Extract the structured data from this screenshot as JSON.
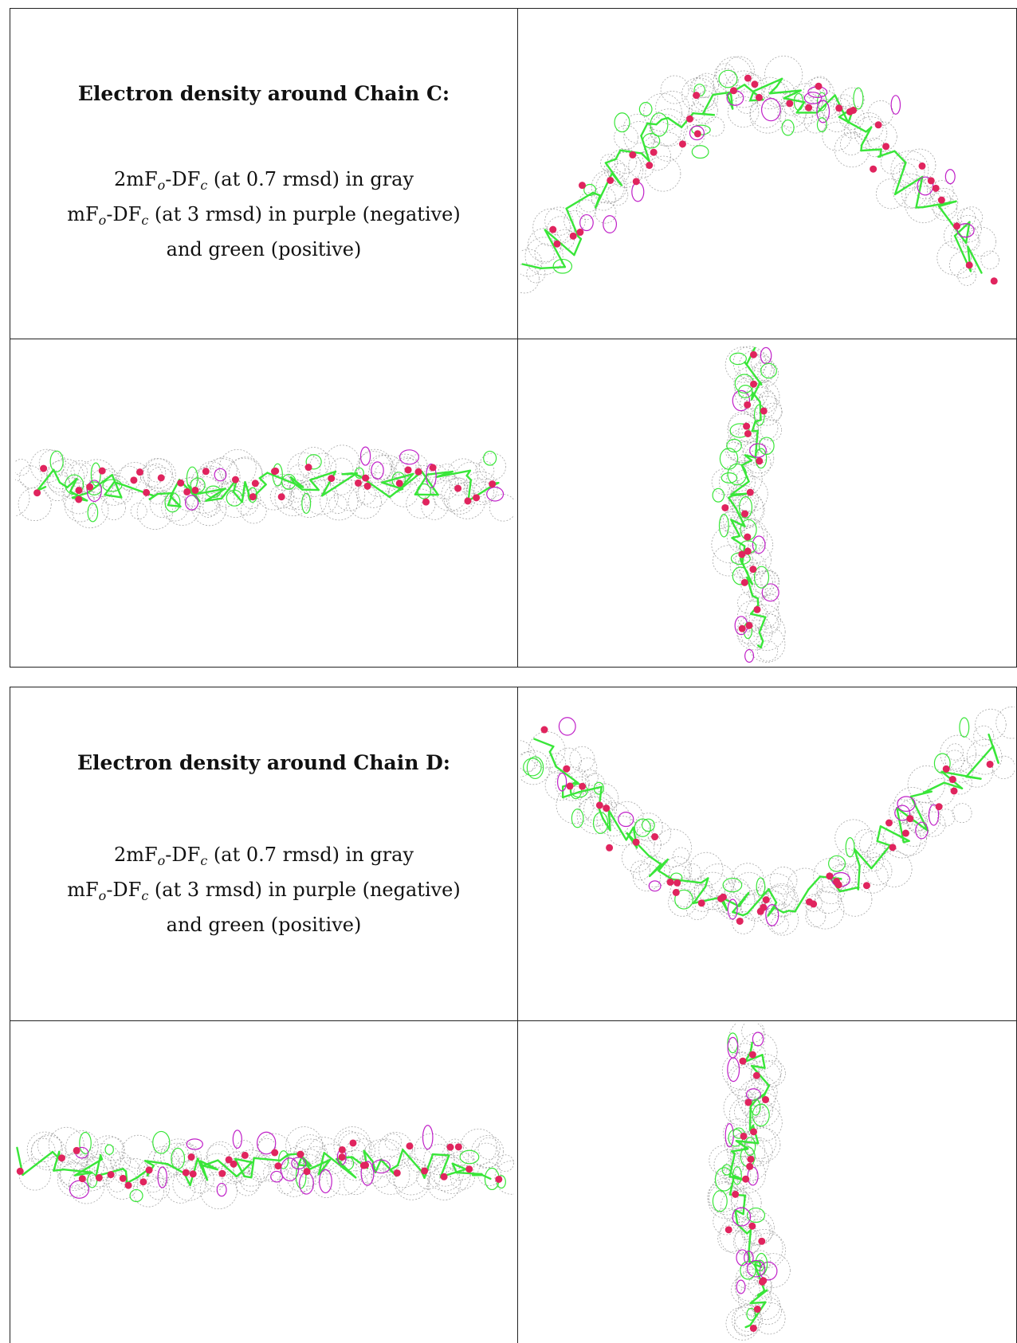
{
  "chain_c": {
    "title": "Electron density around Chain C:",
    "line1_a": "2mF",
    "line1_sub1": "o",
    "line1_b": "-DF",
    "line1_sub2": "c",
    "line1_c": " (at 0.7 rmsd) in gray",
    "line2_a": "mF",
    "line2_sub1": "o",
    "line2_b": "-DF",
    "line2_sub2": "c",
    "line2_c": " (at 3 rmsd) in purple (negative)",
    "line3": "and green (positive)"
  },
  "chain_d": {
    "title": "Electron density around Chain D:",
    "line1_a": "2mF",
    "line1_sub1": "o",
    "line1_b": "-DF",
    "line1_sub2": "c",
    "line1_c": " (at 0.7 rmsd) in gray",
    "line2_a": "mF",
    "line2_sub1": "o",
    "line2_b": "-DF",
    "line2_sub2": "c",
    "line2_c": " (at 3 rmsd) in purple (negative)",
    "line3": "and green (positive)"
  },
  "colors": {
    "mesh_gray": "#8a8a8a",
    "model_green": "#39e639",
    "atom_red": "#e0245e",
    "diff_purple": "#c020c8"
  }
}
